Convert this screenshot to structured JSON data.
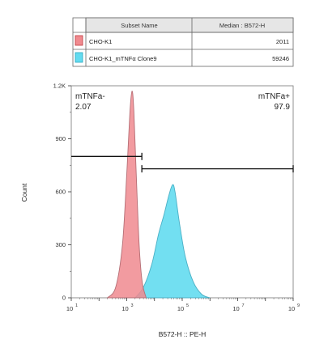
{
  "legend": {
    "headers": [
      "Subset Name",
      "Median : B572-H"
    ],
    "rows": [
      {
        "name": "CHO-K1",
        "median": "2011",
        "color": "#F08A8F"
      },
      {
        "name": "CHO-K1_mTNFα Clone9",
        "median": "59246",
        "color": "#63DBF0"
      }
    ]
  },
  "chart_data": {
    "type": "area",
    "xlabel": "B572-H :: PE-H",
    "ylabel": "Count",
    "xscale": "log",
    "xlim": [
      10,
      1000000000
    ],
    "ylim": [
      0,
      1200
    ],
    "x_tick_labels": [
      {
        "base": "10",
        "exp": "1"
      },
      {
        "base": "10",
        "exp": "3"
      },
      {
        "base": "10",
        "exp": "5"
      },
      {
        "base": "10",
        "exp": "7"
      },
      {
        "base": "10",
        "exp": "9"
      }
    ],
    "y_ticks": [
      0,
      300,
      600,
      900,
      1200
    ],
    "y_tick_labels": [
      "0",
      "300",
      "600",
      "900",
      "1.2K"
    ],
    "series": [
      {
        "name": "CHO-K1",
        "color": "#F08A8F",
        "points": [
          [
            200,
            0
          ],
          [
            400,
            60
          ],
          [
            700,
            300
          ],
          [
            1000,
            700
          ],
          [
            1300,
            1050
          ],
          [
            1550,
            1170
          ],
          [
            1800,
            1060
          ],
          [
            2200,
            700
          ],
          [
            2800,
            300
          ],
          [
            3600,
            90
          ],
          [
            5000,
            0
          ]
        ]
      },
      {
        "name": "CHO-K1_mTNFα Clone9",
        "color": "#63DBF0",
        "points": [
          [
            2000,
            0
          ],
          [
            4000,
            60
          ],
          [
            8000,
            190
          ],
          [
            14000,
            360
          ],
          [
            22000,
            470
          ],
          [
            33000,
            580
          ],
          [
            45000,
            640
          ],
          [
            55000,
            600
          ],
          [
            80000,
            420
          ],
          [
            130000,
            230
          ],
          [
            250000,
            90
          ],
          [
            500000,
            20
          ],
          [
            1000000,
            0
          ]
        ]
      }
    ],
    "gates": [
      {
        "label": "mTNFa-",
        "percent": "2.07",
        "range": [
          10,
          3500
        ],
        "level": 800
      },
      {
        "label": "mTNFa+",
        "percent": "97.9",
        "range": [
          3500,
          1000000000
        ],
        "level": 730
      }
    ]
  }
}
